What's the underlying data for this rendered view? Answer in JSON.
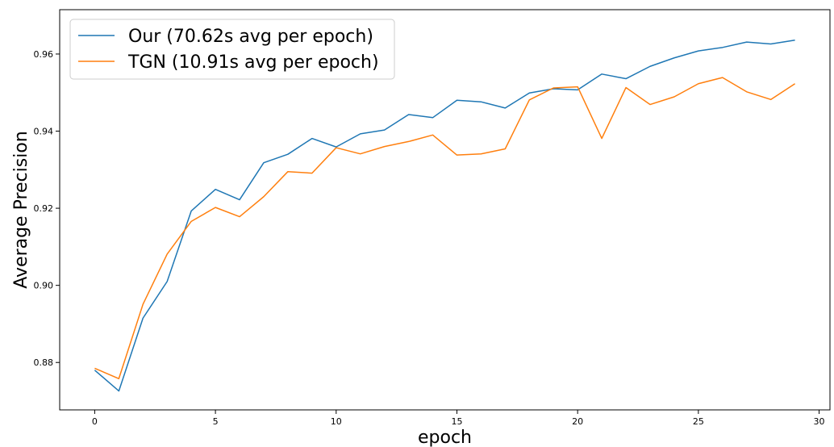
{
  "chart_data": {
    "type": "line",
    "title": "",
    "xlabel": "epoch",
    "ylabel": "Average Precision",
    "xlim": [
      -1.45,
      30.45
    ],
    "ylim": [
      0.8677,
      0.9715
    ],
    "xticks": [
      0,
      5,
      10,
      15,
      20,
      25,
      30
    ],
    "xtick_labels": [
      "0",
      "5",
      "10",
      "15",
      "20",
      "25",
      "30"
    ],
    "yticks": [
      0.88,
      0.9,
      0.92,
      0.94,
      0.96
    ],
    "ytick_labels": [
      "0.88",
      "0.90",
      "0.92",
      "0.94",
      "0.96"
    ],
    "grid": false,
    "legend_position": "top-left",
    "x": [
      0,
      1,
      2,
      3,
      4,
      5,
      6,
      7,
      8,
      9,
      10,
      11,
      12,
      13,
      14,
      15,
      16,
      17,
      18,
      19,
      20,
      21,
      22,
      23,
      24,
      25,
      26,
      27,
      28,
      29
    ],
    "series": [
      {
        "name": "Our (70.62s avg per epoch)",
        "color": "#1f77b4",
        "values": [
          0.878,
          0.8726,
          0.8915,
          0.901,
          0.9193,
          0.9249,
          0.9222,
          0.9318,
          0.934,
          0.9381,
          0.9359,
          0.9393,
          0.9403,
          0.9443,
          0.9435,
          0.948,
          0.9476,
          0.946,
          0.9499,
          0.951,
          0.9507,
          0.9548,
          0.9536,
          0.9568,
          0.959,
          0.9608,
          0.9617,
          0.9631,
          0.9626,
          0.9636
        ]
      },
      {
        "name": "TGN (10.91s avg per epoch)",
        "color": "#ff7f0e",
        "values": [
          0.8785,
          0.8758,
          0.8951,
          0.9081,
          0.9166,
          0.9202,
          0.9178,
          0.923,
          0.9295,
          0.9291,
          0.9357,
          0.9341,
          0.936,
          0.9373,
          0.939,
          0.9338,
          0.9341,
          0.9354,
          0.9481,
          0.9512,
          0.9515,
          0.9381,
          0.9513,
          0.9469,
          0.9489,
          0.9523,
          0.9539,
          0.9502,
          0.9482,
          0.9523
        ]
      }
    ]
  }
}
